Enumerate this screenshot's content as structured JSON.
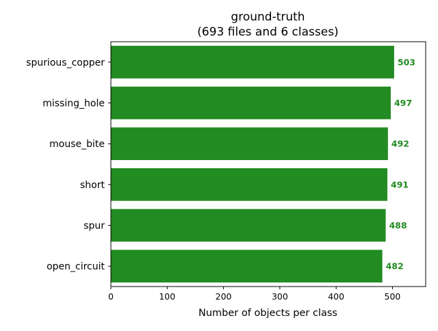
{
  "chart_data": {
    "type": "bar",
    "orientation": "horizontal",
    "title": "ground-truth",
    "subtitle": "(693 files and 6 classes)",
    "xlabel": "Number of objects per class",
    "ylabel": "",
    "categories": [
      "spurious_copper",
      "missing_hole",
      "mouse_bite",
      "short",
      "spur",
      "open_circuit"
    ],
    "values": [
      503,
      497,
      492,
      491,
      488,
      482
    ],
    "value_labels": [
      "503",
      "497",
      "492",
      "491",
      "488",
      "482"
    ],
    "xlim": [
      0,
      559
    ],
    "xticks": [
      "0",
      "100",
      "200",
      "300",
      "400",
      "500"
    ],
    "grid": false,
    "legend": "none",
    "colors": {
      "bar": "#228b22",
      "value_label": "#228b22",
      "axis": "#000000"
    }
  }
}
